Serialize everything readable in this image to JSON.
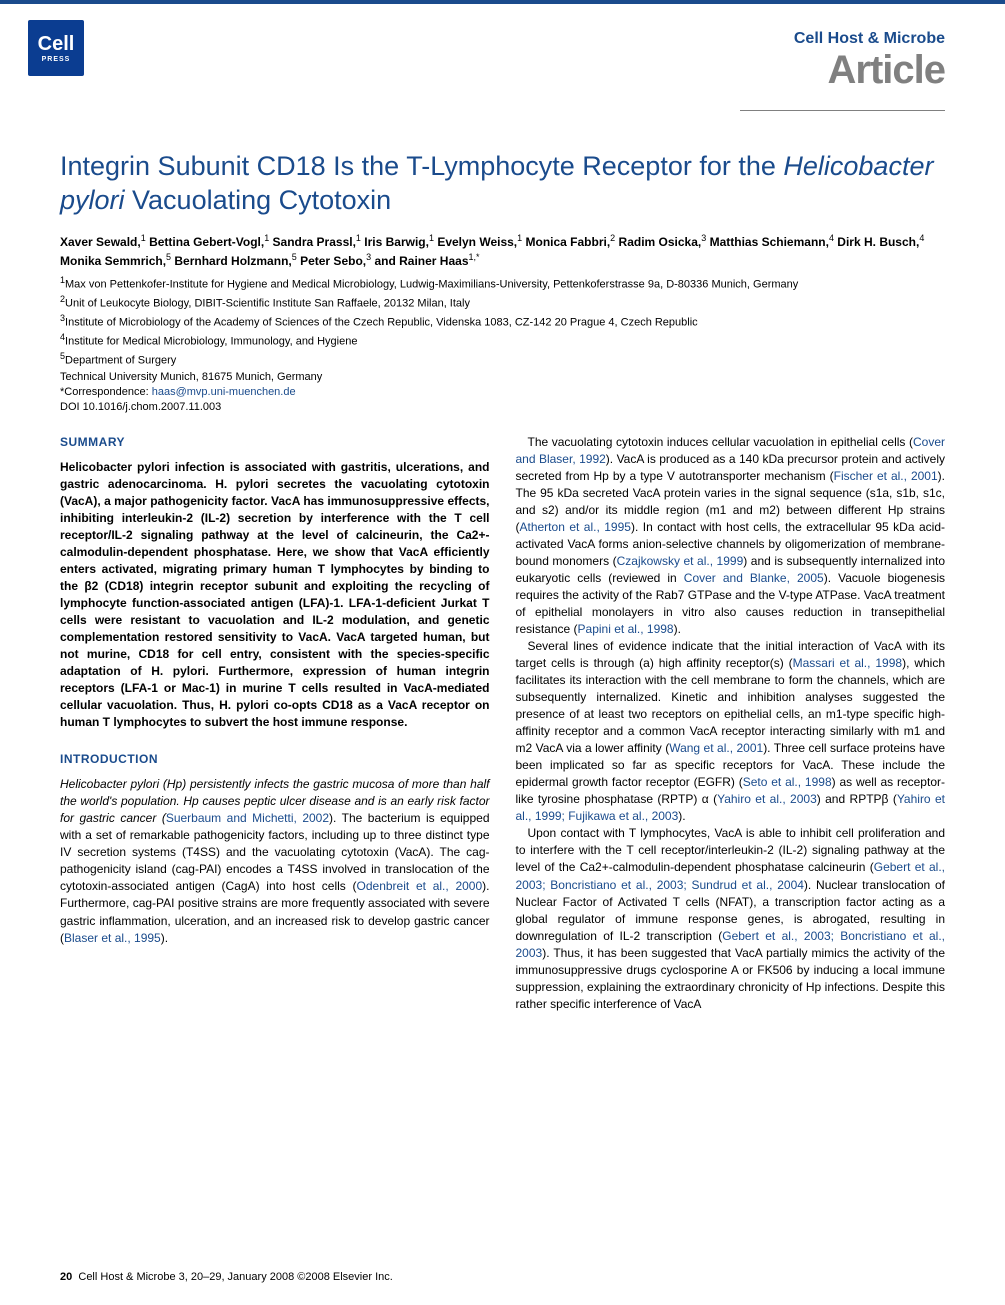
{
  "colors": {
    "brand_blue": "#1a4b8c",
    "logo_blue": "#0b3d91",
    "gray": "#808080",
    "text": "#000000",
    "background": "#ffffff"
  },
  "typography": {
    "title_fontsize": 27,
    "journal_fontsize": 16,
    "article_type_fontsize": 40,
    "body_fontsize": 12,
    "affil_fontsize": 11,
    "footer_fontsize": 11
  },
  "logo": {
    "line1": "Cell",
    "line2": "PRESS"
  },
  "header": {
    "journal": "Cell Host & Microbe",
    "article_type": "Article"
  },
  "title_parts": {
    "p1": "Integrin Subunit CD18 Is the T-Lymphocyte Receptor for the ",
    "p2_italic": "Helicobacter pylori",
    "p3": " Vacuolating Cytotoxin"
  },
  "authors_html": "Xaver Sewald,<sup>1</sup> Bettina Gebert-Vogl,<sup>1</sup> Sandra Prassl,<sup>1</sup> Iris Barwig,<sup>1</sup> Evelyn Weiss,<sup>1</sup> Monica Fabbri,<sup>2</sup> Radim Osicka,<sup>3</sup> Matthias Schiemann,<sup>4</sup> Dirk H. Busch,<sup>4</sup> Monika Semmrich,<sup>5</sup> Bernhard Holzmann,<sup>5</sup> Peter Sebo,<sup>3</sup> and Rainer Haas<sup>1,*</sup>",
  "affiliations": {
    "a1": "Max von Pettenkofer-Institute for Hygiene and Medical Microbiology, Ludwig-Maximilians-University, Pettenkoferstrasse 9a, D-80336 Munich, Germany",
    "a2": "Unit of Leukocyte Biology, DIBIT-Scientific Institute San Raffaele, 20132 Milan, Italy",
    "a3": "Institute of Microbiology of the Academy of Sciences of the Czech Republic, Videnska 1083, CZ-142 20 Prague 4, Czech Republic",
    "a4": "Institute for Medical Microbiology, Immunology, and Hygiene",
    "a5": "Department of Surgery",
    "tech": "Technical University Munich, 81675 Munich, Germany",
    "corr_label": "*Correspondence: ",
    "corr_email": "haas@mvp.uni-muenchen.de",
    "doi": "DOI 10.1016/j.chom.2007.11.003"
  },
  "sections": {
    "summary_head": "SUMMARY",
    "intro_head": "INTRODUCTION"
  },
  "summary": "Helicobacter pylori infection is associated with gastritis, ulcerations, and gastric adenocarcinoma. H. pylori secretes the vacuolating cytotoxin (VacA), a major pathogenicity factor. VacA has immunosuppressive effects, inhibiting interleukin-2 (IL-2) secretion by interference with the T cell receptor/IL-2 signaling pathway at the level of calcineurin, the Ca2+-calmodulin-dependent phosphatase. Here, we show that VacA efficiently enters activated, migrating primary human T lymphocytes by binding to the β2 (CD18) integrin receptor subunit and exploiting the recycling of lymphocyte function-associated antigen (LFA)-1. LFA-1-deficient Jurkat T cells were resistant to vacuolation and IL-2 modulation, and genetic complementation restored sensitivity to VacA. VacA targeted human, but not murine, CD18 for cell entry, consistent with the species-specific adaptation of H. pylori. Furthermore, expression of human integrin receptors (LFA-1 or Mac-1) in murine T cells resulted in VacA-mediated cellular vacuolation. Thus, H. pylori co-opts CD18 as a VacA receptor on human T lymphocytes to subvert the host immune response.",
  "intro_paras": {
    "p1_a": "Helicobacter pylori (Hp) persistently infects the gastric mucosa of more than half the world's population. Hp causes peptic ulcer disease and is an early risk factor for gastric cancer (",
    "p1_c1": "Suerbaum and Michetti, 2002",
    "p1_b": "). The bacterium is equipped with a set of remarkable pathogenicity factors, including up to three distinct type IV secretion systems (T4SS) and the vacuolating cytotoxin (VacA). The cag-pathogenicity island (cag-PAI) encodes a T4SS involved in translocation of the cytotoxin-associated antigen (CagA) into host cells (",
    "p1_c2": "Odenbreit et al., 2000",
    "p1_c": "). Furthermore, cag-PAI positive strains are more frequently associated with severe gastric inflammation, ulceration, and an increased risk to develop gastric cancer (",
    "p1_c3": "Blaser et al., 1995",
    "p1_d": ")."
  },
  "col2_paras": {
    "p1_a": "The vacuolating cytotoxin induces cellular vacuolation in epithelial cells (",
    "p1_c1": "Cover and Blaser, 1992",
    "p1_b": "). VacA is produced as a 140 kDa precursor protein and actively secreted from Hp by a type V autotransporter mechanism (",
    "p1_c2": "Fischer et al., 2001",
    "p1_c": "). The 95 kDa secreted VacA protein varies in the signal sequence (s1a, s1b, s1c, and s2) and/or its middle region (m1 and m2) between different Hp strains (",
    "p1_c3": "Atherton et al., 1995",
    "p1_d": "). In contact with host cells, the extracellular 95 kDa acid-activated VacA forms anion-selective channels by oligomerization of membrane-bound monomers (",
    "p1_c4": "Czajkowsky et al., 1999",
    "p1_e": ") and is subsequently internalized into eukaryotic cells (reviewed in ",
    "p1_c5": "Cover and Blanke, 2005",
    "p1_f": "). Vacuole biogenesis requires the activity of the Rab7 GTPase and the V-type ATPase. VacA treatment of epithelial monolayers in vitro also causes reduction in transepithelial resistance (",
    "p1_c6": "Papini et al., 1998",
    "p1_g": ").",
    "p2_a": "Several lines of evidence indicate that the initial interaction of VacA with its target cells is through (a) high affinity receptor(s) (",
    "p2_c1": "Massari et al., 1998",
    "p2_b": "), which facilitates its interaction with the cell membrane to form the channels, which are subsequently internalized. Kinetic and inhibition analyses suggested the presence of at least two receptors on epithelial cells, an m1-type specific high-affinity receptor and a common VacA receptor interacting similarly with m1 and m2 VacA via a lower affinity (",
    "p2_c2": "Wang et al., 2001",
    "p2_c": "). Three cell surface proteins have been implicated so far as specific receptors for VacA. These include the epidermal growth factor receptor (EGFR) (",
    "p2_c3": "Seto et al., 1998",
    "p2_d": ") as well as receptor-like tyrosine phosphatase (RPTP) α (",
    "p2_c4": "Yahiro et al., 2003",
    "p2_e": ") and RPTPβ (",
    "p2_c5": "Yahiro et al., 1999; Fujikawa et al., 2003",
    "p2_f": ").",
    "p3_a": "Upon contact with T lymphocytes, VacA is able to inhibit cell proliferation and to interfere with the T cell receptor/interleukin-2 (IL-2) signaling pathway at the level of the Ca2+-calmodulin-dependent phosphatase calcineurin (",
    "p3_c1": "Gebert et al., 2003; Boncristiano et al., 2003; Sundrud et al., 2004",
    "p3_b": "). Nuclear translocation of Nuclear Factor of Activated T cells (NFAT), a transcription factor acting as a global regulator of immune response genes, is abrogated, resulting in downregulation of IL-2 transcription (",
    "p3_c2": "Gebert et al., 2003; Boncristiano et al., 2003",
    "p3_c": "). Thus, it has been suggested that VacA partially mimics the activity of the immunosuppressive drugs cyclosporine A or FK506 by inducing a local immune suppression, explaining the extraordinary chronicity of Hp infections. Despite this rather specific interference of VacA"
  },
  "footer": {
    "page": "20",
    "text": "Cell Host & Microbe 3, 20–29, January 2008 ©2008 Elsevier Inc."
  }
}
